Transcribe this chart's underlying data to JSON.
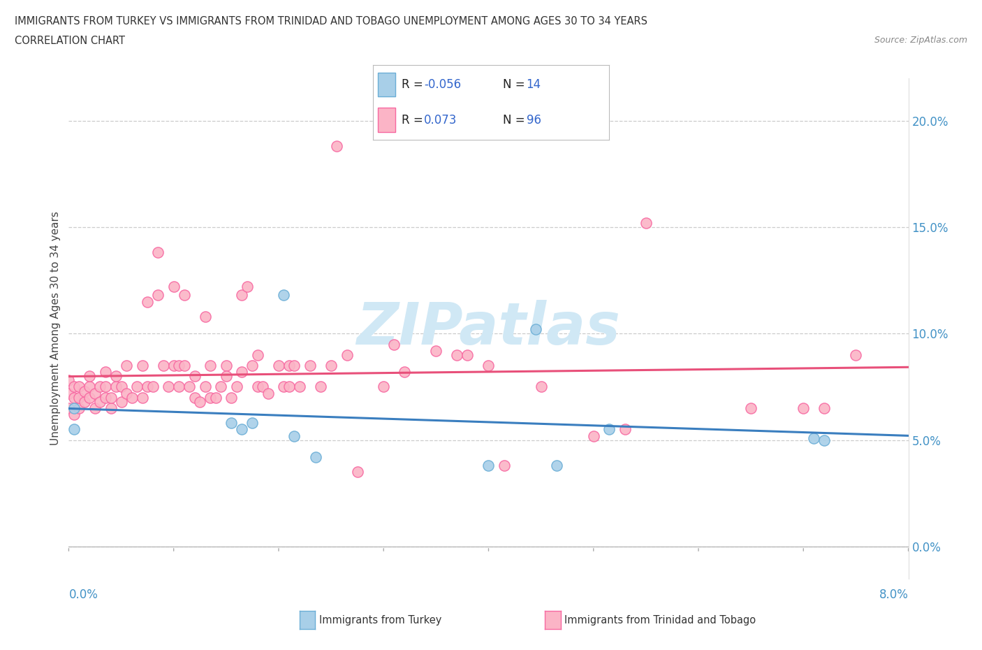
{
  "title_line1": "IMMIGRANTS FROM TURKEY VS IMMIGRANTS FROM TRINIDAD AND TOBAGO UNEMPLOYMENT AMONG AGES 30 TO 34 YEARS",
  "title_line2": "CORRELATION CHART",
  "source": "Source: ZipAtlas.com",
  "ylabel": "Unemployment Among Ages 30 to 34 years",
  "ytick_vals": [
    0.0,
    5.0,
    10.0,
    15.0,
    20.0
  ],
  "xlim": [
    0.0,
    8.0
  ],
  "ylim": [
    -1.5,
    22.0
  ],
  "ylim_data": [
    0.0,
    21.0
  ],
  "legend_R_blue": "-0.056",
  "legend_N_blue": "14",
  "legend_R_pink": "0.073",
  "legend_N_pink": "96",
  "blue_scatter_color": "#a8cfe8",
  "blue_edge_color": "#6baed6",
  "pink_scatter_color": "#fbb4c6",
  "pink_edge_color": "#f768a1",
  "blue_line_color": "#3a7ebf",
  "pink_line_color": "#e8507a",
  "watermark_color": "#d0e8f5",
  "turkey_x": [
    0.05,
    0.05,
    1.55,
    1.65,
    1.75,
    2.05,
    2.15,
    2.35,
    4.45,
    5.15,
    7.1,
    7.2,
    4.0,
    4.65
  ],
  "turkey_y": [
    6.5,
    5.5,
    5.8,
    5.5,
    5.8,
    11.8,
    5.2,
    4.2,
    10.2,
    5.5,
    5.1,
    5.0,
    3.8,
    3.8
  ],
  "trinidad_x": [
    0.0,
    0.0,
    0.0,
    0.05,
    0.05,
    0.05,
    0.1,
    0.1,
    0.1,
    0.15,
    0.15,
    0.2,
    0.2,
    0.2,
    0.25,
    0.25,
    0.3,
    0.3,
    0.35,
    0.35,
    0.35,
    0.4,
    0.4,
    0.45,
    0.45,
    0.5,
    0.5,
    0.55,
    0.55,
    0.6,
    0.65,
    0.7,
    0.7,
    0.75,
    0.75,
    0.8,
    0.85,
    0.85,
    0.9,
    0.95,
    1.0,
    1.0,
    1.05,
    1.05,
    1.1,
    1.1,
    1.15,
    1.2,
    1.2,
    1.25,
    1.3,
    1.3,
    1.35,
    1.35,
    1.4,
    1.45,
    1.5,
    1.5,
    1.55,
    1.6,
    1.65,
    1.65,
    1.7,
    1.75,
    1.8,
    1.8,
    1.85,
    1.9,
    2.0,
    2.05,
    2.1,
    2.1,
    2.15,
    2.2,
    2.3,
    2.4,
    2.5,
    2.55,
    2.65,
    2.75,
    3.0,
    3.1,
    3.2,
    3.5,
    3.7,
    3.8,
    4.0,
    4.15,
    4.5,
    5.0,
    5.3,
    5.5,
    6.5,
    7.0,
    7.2,
    7.5
  ],
  "trinidad_y": [
    6.5,
    7.2,
    7.8,
    6.2,
    7.0,
    7.5,
    6.5,
    7.0,
    7.5,
    6.8,
    7.3,
    7.0,
    7.5,
    8.0,
    6.5,
    7.2,
    6.8,
    7.5,
    7.0,
    7.5,
    8.2,
    6.5,
    7.0,
    7.5,
    8.0,
    6.8,
    7.5,
    7.2,
    8.5,
    7.0,
    7.5,
    7.0,
    8.5,
    7.5,
    11.5,
    7.5,
    11.8,
    13.8,
    8.5,
    7.5,
    8.5,
    12.2,
    7.5,
    8.5,
    8.5,
    11.8,
    7.5,
    8.0,
    7.0,
    6.8,
    7.5,
    10.8,
    8.5,
    7.0,
    7.0,
    7.5,
    8.5,
    8.0,
    7.0,
    7.5,
    11.8,
    8.2,
    12.2,
    8.5,
    7.5,
    9.0,
    7.5,
    7.2,
    8.5,
    7.5,
    7.5,
    8.5,
    8.5,
    7.5,
    8.5,
    7.5,
    8.5,
    18.8,
    9.0,
    3.5,
    7.5,
    9.5,
    8.2,
    9.2,
    9.0,
    9.0,
    8.5,
    3.8,
    7.5,
    5.2,
    5.5,
    15.2,
    6.5,
    6.5,
    6.5,
    9.0
  ]
}
